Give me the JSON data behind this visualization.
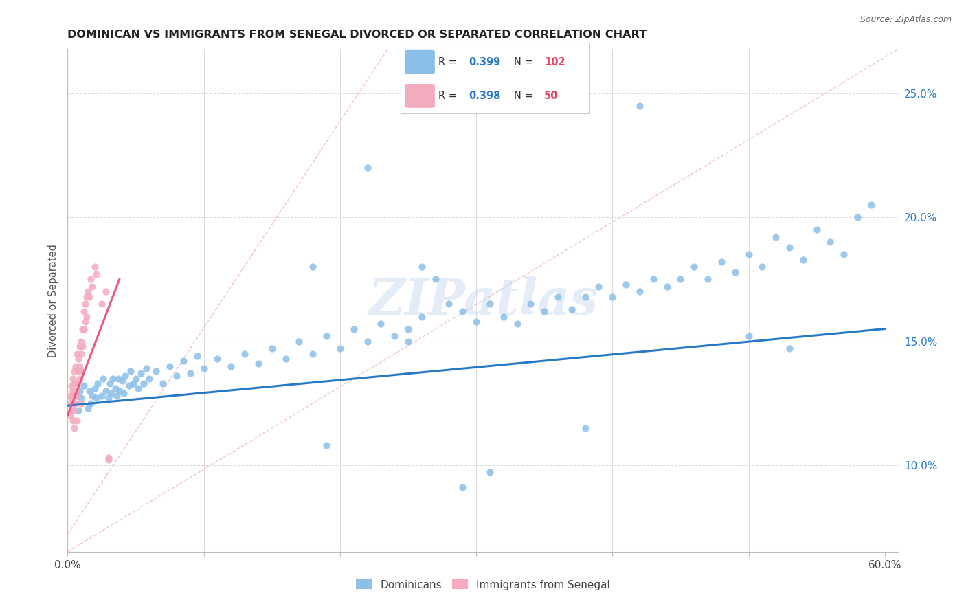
{
  "title": "DOMINICAN VS IMMIGRANTS FROM SENEGAL DIVORCED OR SEPARATED CORRELATION CHART",
  "source_text": "Source: ZipAtlas.com",
  "ylabel": "Divorced or Separated",
  "xlim": [
    0.0,
    0.61
  ],
  "ylim": [
    0.065,
    0.268
  ],
  "xtick_positions": [
    0.0,
    0.1,
    0.2,
    0.3,
    0.4,
    0.5,
    0.6
  ],
  "xtick_labels": [
    "0.0%",
    "",
    "",
    "",
    "",
    "",
    "60.0%"
  ],
  "ytick_positions": [
    0.1,
    0.15,
    0.2,
    0.25
  ],
  "ytick_labels": [
    "10.0%",
    "15.0%",
    "20.0%",
    "25.0%"
  ],
  "r_dominican": 0.399,
  "n_dominican": 102,
  "r_senegal": 0.398,
  "n_senegal": 50,
  "blue_scatter_color": "#8BBFE8",
  "pink_scatter_color": "#F4ABBE",
  "blue_line_color": "#2878C8",
  "pink_line_color": "#E85880",
  "diag_color": "#F0B8C8",
  "title_color": "#222222",
  "grid_color": "#DDDDDD",
  "watermark_color": "#C5D8EE",
  "watermark_text": "ZIPatlas",
  "legend_r_color": "#2878C8",
  "legend_n_color": "#E84060",
  "blue_x": [
    0.005,
    0.007,
    0.008,
    0.009,
    0.01,
    0.012,
    0.015,
    0.016,
    0.017,
    0.018,
    0.02,
    0.021,
    0.022,
    0.025,
    0.026,
    0.028,
    0.03,
    0.031,
    0.032,
    0.033,
    0.035,
    0.036,
    0.037,
    0.038,
    0.04,
    0.041,
    0.042,
    0.045,
    0.046,
    0.048,
    0.05,
    0.052,
    0.054,
    0.056,
    0.058,
    0.06,
    0.065,
    0.07,
    0.075,
    0.08,
    0.085,
    0.09,
    0.095,
    0.1,
    0.11,
    0.12,
    0.13,
    0.14,
    0.15,
    0.16,
    0.17,
    0.18,
    0.19,
    0.2,
    0.21,
    0.22,
    0.23,
    0.24,
    0.25,
    0.26,
    0.28,
    0.29,
    0.3,
    0.31,
    0.32,
    0.33,
    0.34,
    0.35,
    0.36,
    0.37,
    0.38,
    0.39,
    0.4,
    0.41,
    0.42,
    0.43,
    0.44,
    0.45,
    0.46,
    0.47,
    0.48,
    0.49,
    0.5,
    0.51,
    0.52,
    0.53,
    0.54,
    0.55,
    0.56,
    0.57,
    0.58,
    0.59,
    0.26,
    0.27,
    0.22,
    0.18,
    0.31,
    0.19,
    0.5,
    0.42,
    0.29,
    0.38,
    0.25,
    0.53
  ],
  "blue_y": [
    0.125,
    0.128,
    0.122,
    0.13,
    0.127,
    0.132,
    0.123,
    0.13,
    0.125,
    0.128,
    0.131,
    0.127,
    0.133,
    0.128,
    0.135,
    0.13,
    0.127,
    0.133,
    0.129,
    0.135,
    0.131,
    0.128,
    0.135,
    0.13,
    0.134,
    0.129,
    0.136,
    0.132,
    0.138,
    0.133,
    0.135,
    0.131,
    0.137,
    0.133,
    0.139,
    0.135,
    0.138,
    0.133,
    0.14,
    0.136,
    0.142,
    0.137,
    0.144,
    0.139,
    0.143,
    0.14,
    0.145,
    0.141,
    0.147,
    0.143,
    0.15,
    0.145,
    0.152,
    0.147,
    0.155,
    0.15,
    0.157,
    0.152,
    0.155,
    0.16,
    0.165,
    0.162,
    0.158,
    0.165,
    0.16,
    0.157,
    0.165,
    0.162,
    0.168,
    0.163,
    0.168,
    0.172,
    0.168,
    0.173,
    0.17,
    0.175,
    0.172,
    0.175,
    0.18,
    0.175,
    0.182,
    0.178,
    0.185,
    0.18,
    0.192,
    0.188,
    0.183,
    0.195,
    0.19,
    0.185,
    0.2,
    0.205,
    0.18,
    0.175,
    0.22,
    0.18,
    0.097,
    0.108,
    0.152,
    0.245,
    0.091,
    0.115,
    0.15,
    0.147
  ],
  "pink_x": [
    0.002,
    0.002,
    0.002,
    0.003,
    0.003,
    0.003,
    0.004,
    0.004,
    0.004,
    0.004,
    0.005,
    0.005,
    0.005,
    0.005,
    0.005,
    0.006,
    0.006,
    0.006,
    0.007,
    0.007,
    0.007,
    0.007,
    0.008,
    0.008,
    0.008,
    0.009,
    0.009,
    0.009,
    0.01,
    0.01,
    0.01,
    0.01,
    0.011,
    0.011,
    0.012,
    0.012,
    0.013,
    0.013,
    0.014,
    0.014,
    0.015,
    0.016,
    0.017,
    0.018,
    0.02,
    0.021,
    0.025,
    0.028,
    0.03,
    0.03
  ],
  "pink_y": [
    0.125,
    0.128,
    0.12,
    0.122,
    0.127,
    0.132,
    0.125,
    0.13,
    0.118,
    0.135,
    0.128,
    0.133,
    0.122,
    0.138,
    0.115,
    0.13,
    0.125,
    0.14,
    0.133,
    0.128,
    0.145,
    0.118,
    0.138,
    0.133,
    0.143,
    0.14,
    0.148,
    0.135,
    0.145,
    0.138,
    0.15,
    0.125,
    0.155,
    0.148,
    0.155,
    0.162,
    0.158,
    0.165,
    0.16,
    0.168,
    0.17,
    0.168,
    0.175,
    0.172,
    0.18,
    0.177,
    0.165,
    0.17,
    0.102,
    0.103
  ],
  "blue_trend": [
    0.0,
    0.6,
    0.124,
    0.155
  ],
  "pink_trend": [
    0.0,
    0.038,
    0.12,
    0.175
  ],
  "diag_line": [
    0.0,
    0.268,
    0.065,
    0.268
  ]
}
